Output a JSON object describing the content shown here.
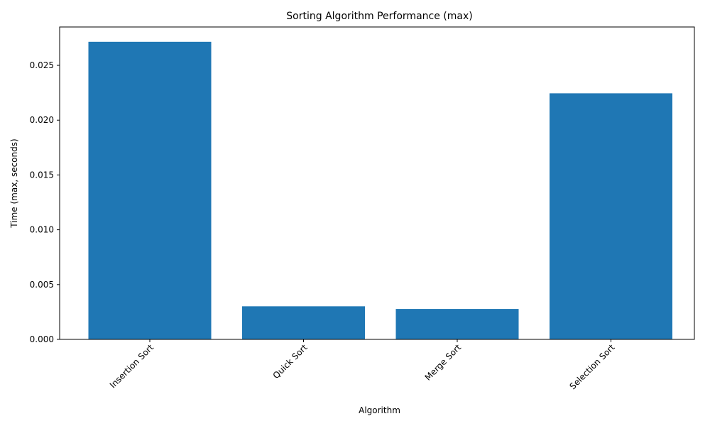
{
  "chart_data": {
    "type": "bar",
    "title": "Sorting Algorithm Performance (max)",
    "xlabel": "Algorithm",
    "ylabel": "Time (max, seconds)",
    "categories": [
      "Insertion Sort",
      "Quick Sort",
      "Merge Sort",
      "Selection Sort"
    ],
    "values": [
      0.02715,
      0.00302,
      0.00278,
      0.02245
    ],
    "ylim": [
      0,
      0.0285
    ],
    "yticks": [
      "0.000",
      "0.005",
      "0.010",
      "0.015",
      "0.020",
      "0.025"
    ],
    "ytick_values": [
      0,
      0.005,
      0.01,
      0.015,
      0.02,
      0.025
    ],
    "bar_color": "#1f77b4",
    "grid": false,
    "legend": "none"
  }
}
